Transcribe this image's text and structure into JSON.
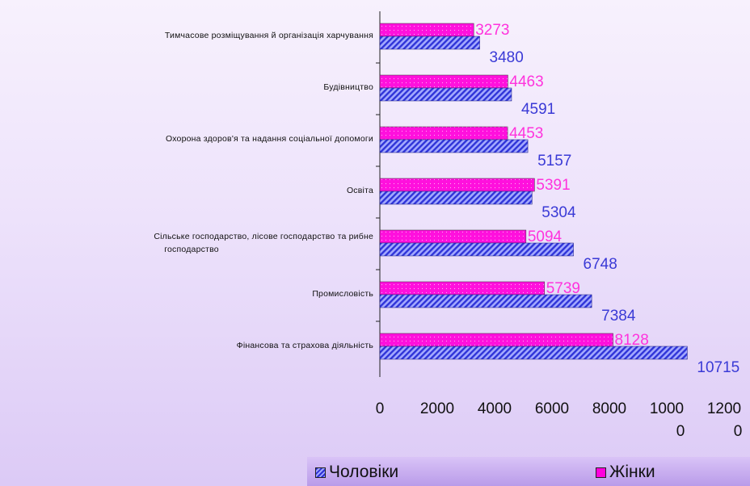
{
  "colors": {
    "men": "#2f34d8",
    "women": "#ff10dd",
    "men_label": "#3a3ad6",
    "women_label": "#ff33dd",
    "axis": "#222222"
  },
  "chart_data": {
    "type": "bar",
    "orientation": "horizontal",
    "categories": [
      "Тимчасове розміщування й організація харчування",
      "Будівництво",
      "Охорона здоров'я та надання соціальної допомоги",
      "Освіта",
      "Сільське господарство, лісове господарство та рибне господарство",
      "Промисловість",
      "Фінансова та страхова діяльність"
    ],
    "category_labels": [
      [
        "Тимчасове розміщування й організація харчування"
      ],
      [
        "Будівництво"
      ],
      [
        "Охорона здоров'я та надання соціальної допомоги"
      ],
      [
        "Освіта"
      ],
      [
        "Сільське господарство, лісове господарство та рибне",
        "господарство"
      ],
      [
        "Промисловість"
      ],
      [
        "Фінансова та страхова діяльність"
      ]
    ],
    "series": [
      {
        "name": "Жінки",
        "values": [
          3273,
          4463,
          4453,
          5391,
          5094,
          5739,
          8128
        ]
      },
      {
        "name": "Чоловіки",
        "values": [
          3480,
          4591,
          5157,
          5304,
          6748,
          7384,
          10715
        ]
      }
    ],
    "data_labels": {
      "women": [
        "3273",
        "4463",
        "4453",
        "5391",
        "5094",
        "5739",
        "8128"
      ],
      "men": [
        "3480",
        "4591",
        "5157",
        "5304",
        "6748",
        "7384",
        "10715"
      ]
    },
    "xlim": [
      0,
      12000
    ],
    "x_ticks": [
      {
        "value": 0,
        "lines": [
          "0"
        ]
      },
      {
        "value": 2000,
        "lines": [
          "2000"
        ]
      },
      {
        "value": 4000,
        "lines": [
          "4000"
        ]
      },
      {
        "value": 6000,
        "lines": [
          "6000"
        ]
      },
      {
        "value": 8000,
        "lines": [
          "8000"
        ]
      },
      {
        "value": 10000,
        "lines": [
          "1000",
          "0"
        ]
      },
      {
        "value": 12000,
        "lines": [
          "1200",
          "0"
        ]
      }
    ],
    "legend_position": "bottom-right",
    "grid": false
  },
  "legend": {
    "men_label": "Чоловіки",
    "women_label": "Жінки"
  }
}
